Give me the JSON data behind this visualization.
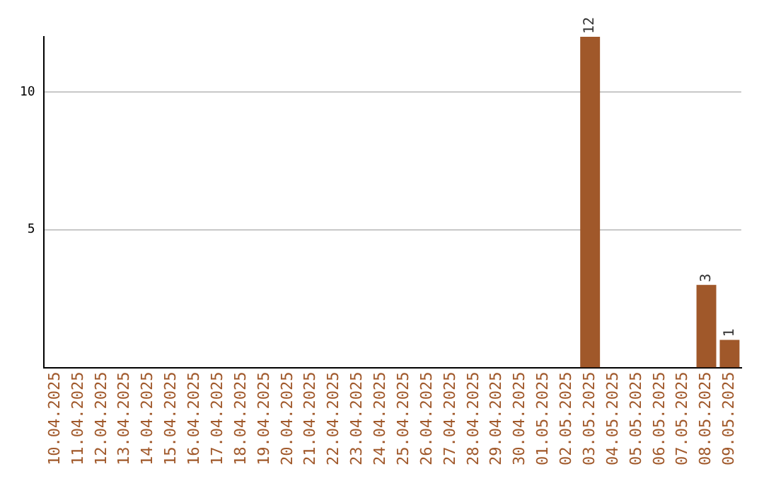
{
  "chart_data": {
    "type": "bar",
    "categories": [
      "10.04.2025",
      "11.04.2025",
      "12.04.2025",
      "13.04.2025",
      "14.04.2025",
      "15.04.2025",
      "16.04.2025",
      "17.04.2025",
      "18.04.2025",
      "19.04.2025",
      "20.04.2025",
      "21.04.2025",
      "22.04.2025",
      "23.04.2025",
      "24.04.2025",
      "25.04.2025",
      "26.04.2025",
      "27.04.2025",
      "28.04.2025",
      "29.04.2025",
      "30.04.2025",
      "01.05.2025",
      "02.05.2025",
      "03.05.2025",
      "04.05.2025",
      "05.05.2025",
      "06.05.2025",
      "07.05.2025",
      "08.05.2025",
      "09.05.2025"
    ],
    "values": [
      0,
      0,
      0,
      0,
      0,
      0,
      0,
      0,
      0,
      0,
      0,
      0,
      0,
      0,
      0,
      0,
      0,
      0,
      0,
      0,
      0,
      0,
      0,
      12,
      0,
      0,
      0,
      0,
      3,
      1
    ],
    "value_labels": [
      null,
      null,
      null,
      null,
      null,
      null,
      null,
      null,
      null,
      null,
      null,
      null,
      null,
      null,
      null,
      null,
      null,
      null,
      null,
      null,
      null,
      null,
      null,
      "12",
      null,
      null,
      null,
      null,
      "3",
      "1"
    ],
    "color": "#a0582a",
    "ylim": [
      0,
      12
    ],
    "yticks": [
      5,
      10
    ],
    "grid": "y",
    "legend": false
  }
}
